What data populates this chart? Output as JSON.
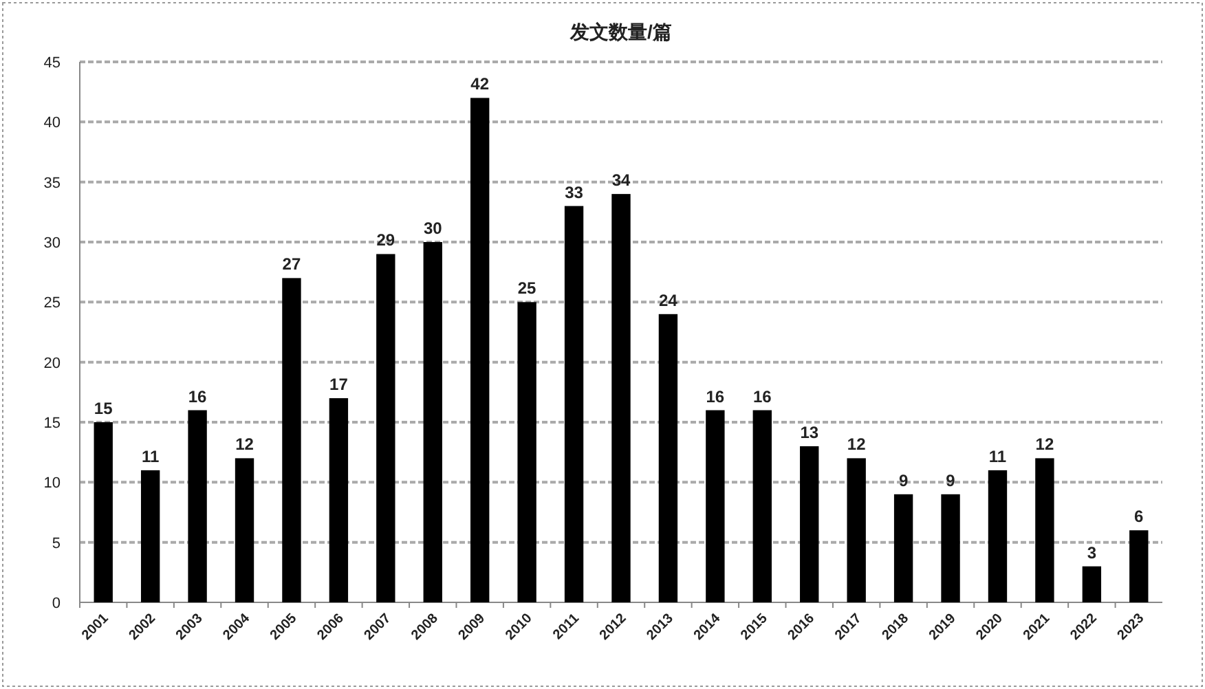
{
  "chart_data": {
    "type": "bar",
    "title": "发文数量/篇",
    "categories": [
      "2001",
      "2002",
      "2003",
      "2004",
      "2005",
      "2006",
      "2007",
      "2008",
      "2009",
      "2010",
      "2011",
      "2012",
      "2013",
      "2014",
      "2015",
      "2016",
      "2017",
      "2018",
      "2019",
      "2020",
      "2021",
      "2022",
      "2023"
    ],
    "values": [
      15,
      11,
      16,
      12,
      27,
      17,
      29,
      30,
      42,
      25,
      33,
      34,
      24,
      16,
      16,
      13,
      12,
      9,
      9,
      11,
      12,
      3,
      6
    ],
    "color": "#000000",
    "ylim": [
      0,
      45
    ],
    "yticks": [
      0,
      5,
      10,
      15,
      20,
      25,
      30,
      35,
      40,
      45
    ],
    "grid": "y",
    "data_labels": true
  }
}
